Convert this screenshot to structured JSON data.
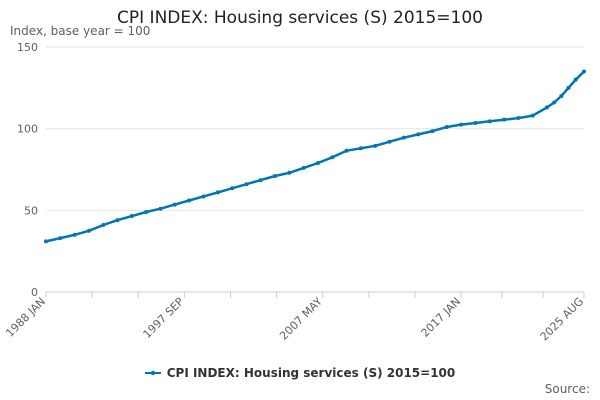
{
  "chart_data": {
    "type": "line",
    "title": "CPI INDEX: Housing services (S) 2015=100",
    "ylabel": "Index, base year = 100",
    "xlabel": "",
    "ylim": [
      0,
      150
    ],
    "yticks": [
      0,
      50,
      100,
      150
    ],
    "x_range": [
      "1988 JAN",
      "2025 AUG"
    ],
    "x_tick_labels": [
      "1988 JAN",
      "1997 SEP",
      "2007 MAY",
      "2017 JAN",
      "2025 AUG"
    ],
    "x_tick_label_year_values": [
      1988.0,
      1997.667,
      2007.333,
      2017.0,
      2025.583
    ],
    "series": [
      {
        "name": "CPI INDEX: Housing services (S) 2015=100",
        "color": "#0075b2",
        "points": [
          [
            1988.0,
            31
          ],
          [
            1989.0,
            33
          ],
          [
            1990.0,
            35
          ],
          [
            1991.0,
            37.5
          ],
          [
            1992.0,
            41
          ],
          [
            1993.0,
            44
          ],
          [
            1994.0,
            46.5
          ],
          [
            1995.0,
            49
          ],
          [
            1996.0,
            51
          ],
          [
            1997.0,
            53.5
          ],
          [
            1998.0,
            56
          ],
          [
            1999.0,
            58.5
          ],
          [
            2000.0,
            61
          ],
          [
            2001.0,
            63.5
          ],
          [
            2002.0,
            66
          ],
          [
            2003.0,
            68.5
          ],
          [
            2004.0,
            71
          ],
          [
            2005.0,
            73
          ],
          [
            2006.0,
            76
          ],
          [
            2007.0,
            79
          ],
          [
            2008.0,
            82.5
          ],
          [
            2009.0,
            86.5
          ],
          [
            2010.0,
            88
          ],
          [
            2011.0,
            89.5
          ],
          [
            2012.0,
            92
          ],
          [
            2013.0,
            94.5
          ],
          [
            2014.0,
            96.5
          ],
          [
            2015.0,
            98.5
          ],
          [
            2016.0,
            101
          ],
          [
            2017.0,
            102.5
          ],
          [
            2018.0,
            103.5
          ],
          [
            2019.0,
            104.5
          ],
          [
            2020.0,
            105.5
          ],
          [
            2021.0,
            106.5
          ],
          [
            2022.0,
            108
          ],
          [
            2023.0,
            113
          ],
          [
            2023.5,
            116
          ],
          [
            2024.0,
            120
          ],
          [
            2024.5,
            125
          ],
          [
            2025.0,
            130
          ],
          [
            2025.583,
            135
          ]
        ]
      }
    ],
    "legend": "bottom-center",
    "source": "Source:"
  }
}
